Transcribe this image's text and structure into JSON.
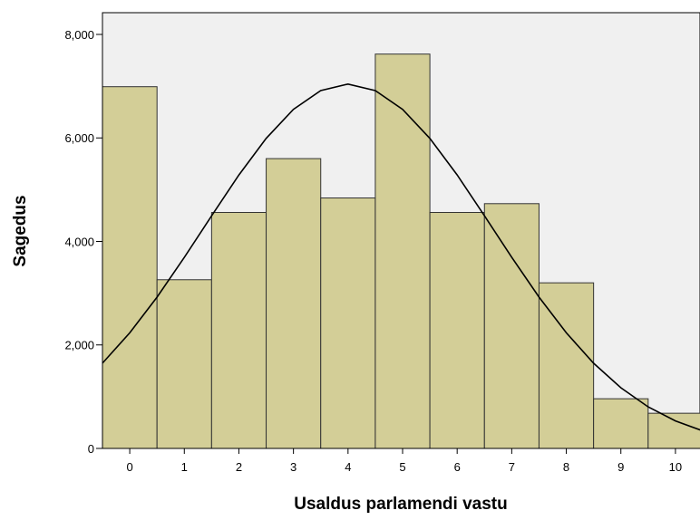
{
  "chart_data": {
    "type": "histogram",
    "bins": [
      -0.5,
      0.5,
      1.5,
      2.5,
      3.5,
      4.5,
      5.5,
      6.5,
      7.5,
      8.5,
      9.5,
      10.5
    ],
    "values": [
      6990,
      3260,
      4560,
      5600,
      4840,
      7620,
      4560,
      4730,
      3200,
      960,
      680
    ],
    "color": "#d3ce97",
    "xlabel": "Usaldus parlamendi vastu",
    "ylabel": "Sagedus",
    "xlim": [
      -0.5,
      10.45
    ],
    "ylim": [
      0,
      8420
    ],
    "xticks": [
      0,
      1,
      2,
      3,
      4,
      5,
      6,
      7,
      8,
      9,
      10
    ],
    "yticks": [
      0,
      {
        "value": 2000,
        "label": "2,000"
      },
      {
        "value": 4000,
        "label": "4,000"
      },
      {
        "value": 6000,
        "label": "6,000"
      },
      {
        "value": 8000,
        "label": "8,000"
      }
    ],
    "normal_curve": {
      "x": [
        -0.5,
        0,
        0.5,
        1,
        1.5,
        2,
        2.5,
        3,
        3.5,
        4,
        4.5,
        5,
        5.5,
        6,
        6.5,
        7,
        7.5,
        8,
        8.5,
        9,
        9.5,
        10,
        10.5
      ],
      "values": [
        1647,
        2234,
        2924,
        3691,
        4496,
        5284,
        5990,
        6553,
        6915,
        7040,
        6915,
        6553,
        5990,
        5284,
        4496,
        3691,
        2924,
        2234,
        1647,
        1172,
        804,
        532,
        340
      ]
    }
  }
}
